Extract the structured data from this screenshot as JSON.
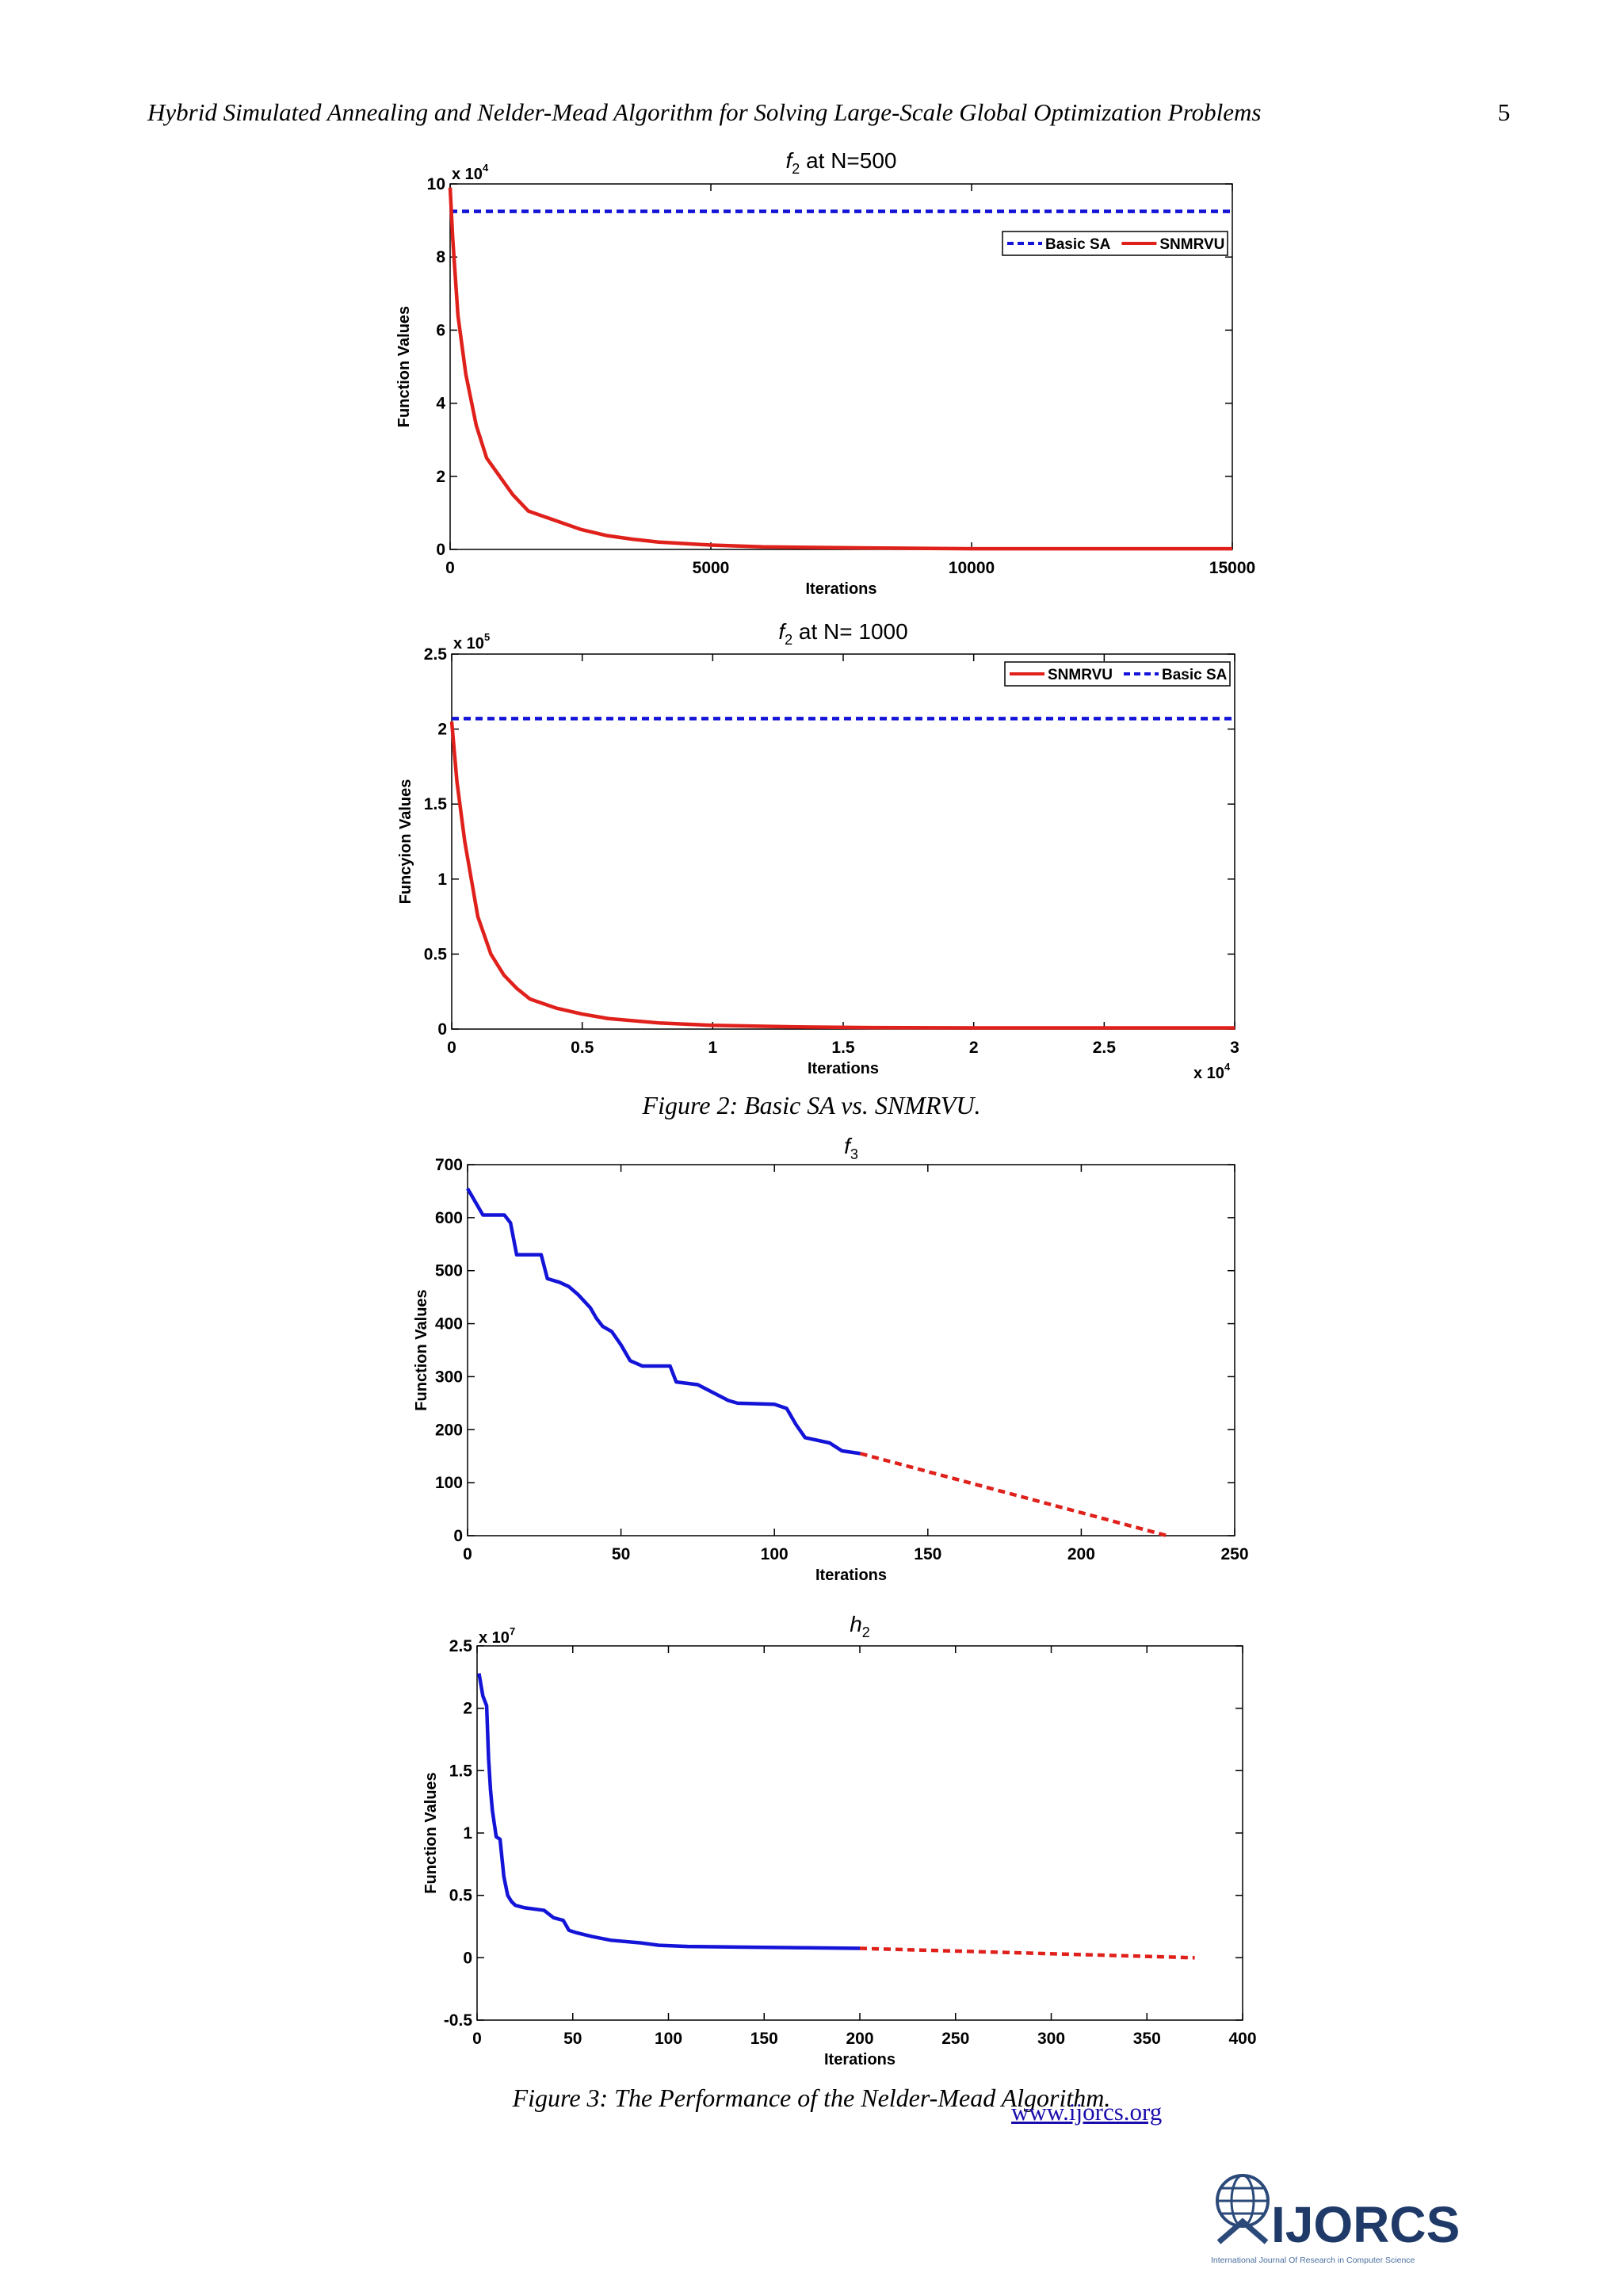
{
  "header": {
    "running_title": "Hybrid Simulated Annealing and Nelder-Mead Algorithm for Solving Large-Scale Global Optimization Problems",
    "page_number": "5"
  },
  "captions": {
    "figure2": "Figure 2: Basic SA vs. SNMRVU.",
    "figure3": "Figure 3: The Performance of the Nelder-Mead Algorithm."
  },
  "footer": {
    "url": "www.ijorcs.org",
    "logo_text": "IJORCS",
    "logo_tagline": "International Journal Of Research in Computer Science"
  },
  "colors": {
    "red": "#e0201b",
    "blue": "#1414d8",
    "axis": "#000000"
  },
  "chart_data": [
    {
      "id": "c1",
      "type": "line",
      "title": "f2 at N=500",
      "title_main": "f",
      "title_sub": "2",
      "title_rest": " at N=500",
      "xlabel": "Iterations",
      "ylabel": "Function Values",
      "multiplier_text": "x 10",
      "multiplier_exp": "4",
      "multiplier_position": "top-left",
      "xlim": [
        0,
        15000
      ],
      "ylim": [
        0,
        10
      ],
      "xticks": [
        0,
        5000,
        10000,
        15000
      ],
      "yticks": [
        0,
        2,
        4,
        6,
        8,
        10
      ],
      "legend": "top-right",
      "series": [
        {
          "name": "Basic SA",
          "style": "dashed",
          "color": "#1414d8",
          "x": [
            0,
            15000
          ],
          "y": [
            9.25,
            9.25
          ]
        },
        {
          "name": "SNMRVU",
          "style": "solid",
          "color": "#e0201b",
          "x": [
            0,
            50,
            150,
            300,
            500,
            700,
            900,
            1200,
            1500,
            2000,
            2500,
            3000,
            3500,
            4000,
            5000,
            6000,
            8000,
            10000,
            15000
          ],
          "y": [
            9.9,
            8.5,
            6.4,
            4.8,
            3.4,
            2.5,
            2.1,
            1.5,
            1.05,
            0.8,
            0.55,
            0.38,
            0.28,
            0.2,
            0.12,
            0.07,
            0.04,
            0.02,
            0.02
          ]
        }
      ]
    },
    {
      "id": "c2",
      "type": "line",
      "title": "f2 at N= 1000",
      "title_main": "f",
      "title_sub": "2",
      "title_rest": " at N= 1000",
      "xlabel": "Iterations",
      "ylabel": "Funcyion Values",
      "multiplier_text": "x 10",
      "multiplier_exp": "5",
      "multiplier_position": "top-left",
      "x_multiplier_text": "x 10",
      "x_multiplier_exp": "4",
      "xlim": [
        0,
        3
      ],
      "ylim": [
        0,
        2.5
      ],
      "xticks": [
        0,
        0.5,
        1,
        1.5,
        2,
        2.5,
        3
      ],
      "yticks": [
        0,
        0.5,
        1,
        1.5,
        2,
        2.5
      ],
      "legend": "top-right",
      "series": [
        {
          "name": "SNMRVU",
          "style": "solid",
          "color": "#e0201b",
          "x": [
            0,
            0.02,
            0.05,
            0.08,
            0.1,
            0.15,
            0.2,
            0.25,
            0.3,
            0.4,
            0.5,
            0.6,
            0.8,
            1.0,
            1.3,
            1.6,
            2.0,
            3.0
          ],
          "y": [
            2.05,
            1.65,
            1.25,
            0.95,
            0.75,
            0.5,
            0.36,
            0.27,
            0.2,
            0.14,
            0.1,
            0.07,
            0.04,
            0.025,
            0.015,
            0.01,
            0.008,
            0.008
          ]
        },
        {
          "name": "Basic SA",
          "style": "dashed",
          "color": "#1414d8",
          "x": [
            0,
            3
          ],
          "y": [
            2.07,
            2.07
          ]
        }
      ]
    },
    {
      "id": "c3",
      "type": "line",
      "title": "f3",
      "title_main": "f",
      "title_sub": "3",
      "title_rest": "",
      "xlabel": "Iterations",
      "ylabel": "Function Values",
      "xlim": [
        0,
        250
      ],
      "ylim": [
        0,
        700
      ],
      "xticks": [
        0,
        50,
        100,
        150,
        200,
        250
      ],
      "yticks": [
        0,
        100,
        200,
        300,
        400,
        500,
        600,
        700
      ],
      "legend": "none",
      "series": [
        {
          "style": "solid",
          "color": "#1414d8",
          "x": [
            0,
            3,
            5,
            12,
            14,
            16,
            24,
            26,
            30,
            33,
            36,
            40,
            42,
            44,
            47,
            50,
            53,
            57,
            60,
            66,
            68,
            75,
            80,
            85,
            88,
            100,
            104,
            107,
            110,
            118,
            122,
            128
          ],
          "y": [
            655,
            625,
            605,
            605,
            590,
            530,
            530,
            485,
            478,
            470,
            455,
            430,
            410,
            395,
            385,
            360,
            330,
            320,
            320,
            320,
            290,
            285,
            270,
            255,
            250,
            248,
            240,
            210,
            185,
            175,
            160,
            155
          ]
        },
        {
          "style": "dashed",
          "color": "#e0201b",
          "x": [
            128,
            228
          ],
          "y": [
            155,
            0
          ]
        }
      ]
    },
    {
      "id": "c4",
      "type": "line",
      "title": "h2",
      "title_main": "h",
      "title_sub": "2",
      "title_rest": "",
      "xlabel": "Iterations",
      "ylabel": "Function Values",
      "multiplier_text": "x 10",
      "multiplier_exp": "7",
      "multiplier_position": "top-left",
      "xlim": [
        0,
        400
      ],
      "ylim": [
        -0.5,
        2.5
      ],
      "xticks": [
        0,
        50,
        100,
        150,
        200,
        250,
        300,
        350,
        400
      ],
      "yticks": [
        -0.5,
        0,
        0.5,
        1,
        1.5,
        2,
        2.5
      ],
      "legend": "none",
      "series": [
        {
          "style": "solid",
          "color": "#1414d8",
          "x": [
            1,
            3,
            5,
            6,
            7,
            8,
            10,
            12,
            14,
            16,
            18,
            20,
            25,
            35,
            40,
            45,
            48,
            52,
            60,
            70,
            85,
            95,
            110,
            140,
            170,
            200
          ],
          "y": [
            2.28,
            2.1,
            2.02,
            1.6,
            1.35,
            1.18,
            0.97,
            0.95,
            0.65,
            0.5,
            0.45,
            0.42,
            0.4,
            0.38,
            0.32,
            0.3,
            0.22,
            0.2,
            0.17,
            0.14,
            0.12,
            0.1,
            0.09,
            0.085,
            0.08,
            0.075
          ]
        },
        {
          "style": "dashed",
          "color": "#e0201b",
          "x": [
            200,
            375
          ],
          "y": [
            0.075,
            0.0
          ]
        }
      ]
    }
  ]
}
